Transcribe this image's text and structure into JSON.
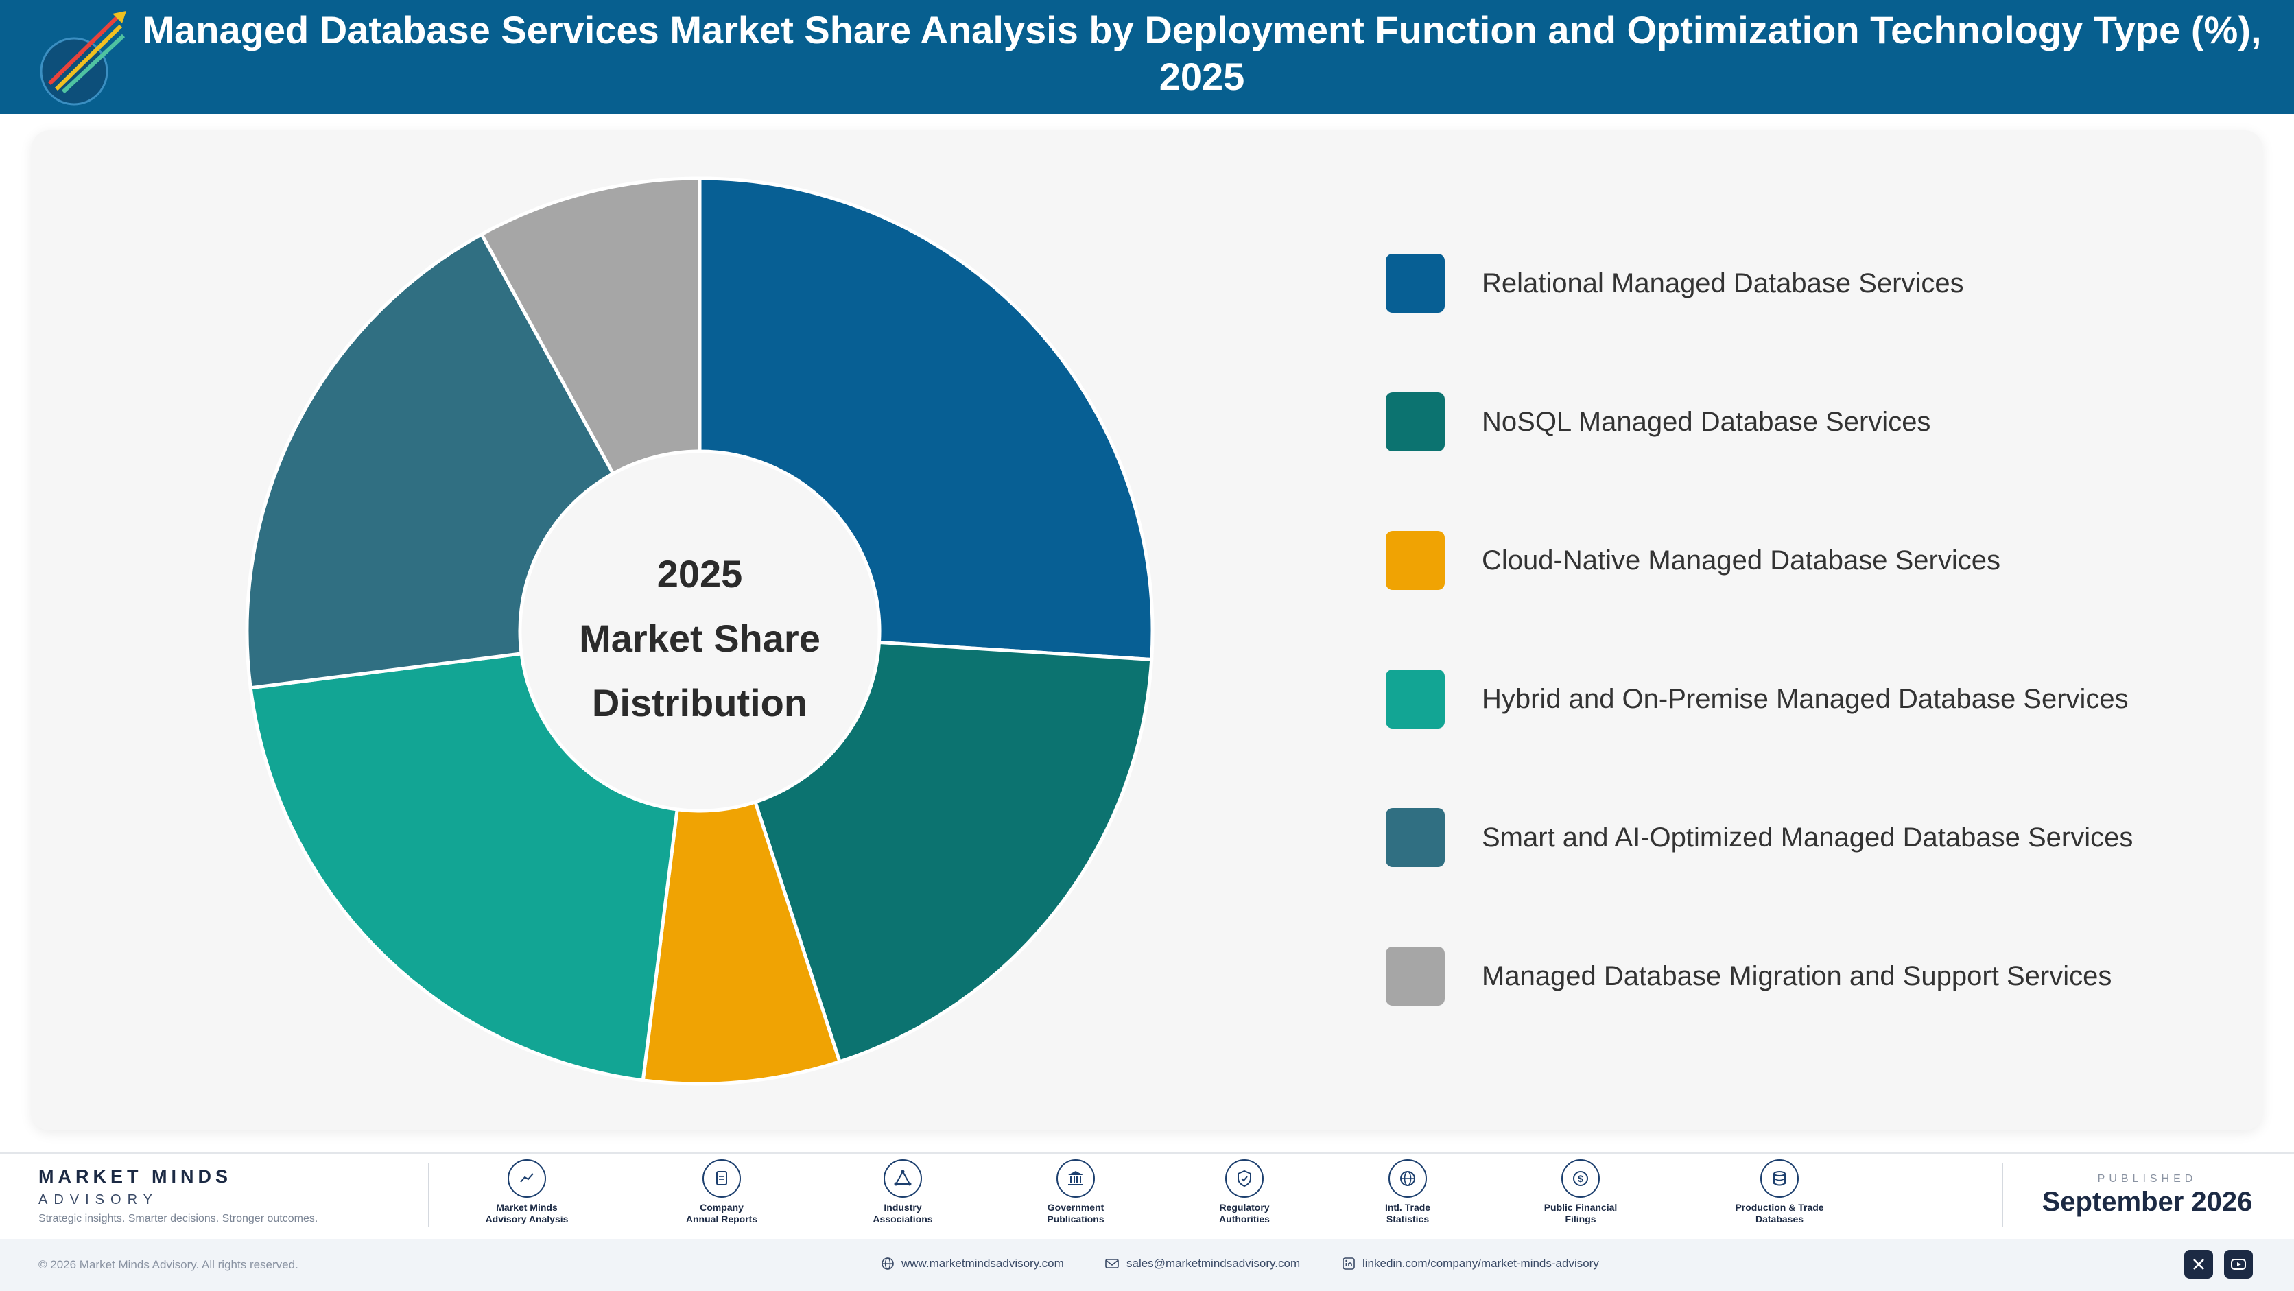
{
  "header": {
    "title": "Managed Database Services Market Share Analysis by Deployment Function and Optimization Technology Type (%), 2025"
  },
  "center_label": {
    "line1": "2025",
    "line2": "Market Share",
    "line3": "Distribution"
  },
  "chart_data": {
    "type": "pie",
    "style": "donut",
    "legend_position": "right",
    "categories": [
      "Relational Managed Database Services",
      "NoSQL Managed Database Services",
      "Cloud-Native Managed Database Services",
      "Hybrid and On-Premise Managed Database Services",
      "Smart and AI-Optimized Managed Database Services",
      "Managed Database Migration and Support Services"
    ],
    "values": [
      26.0,
      19.0,
      7.0,
      21.0,
      19.0,
      8.0
    ],
    "colors": [
      "#075f94",
      "#0c7370",
      "#f0a303",
      "#12a594",
      "#306f82",
      "#a6a6a6"
    ],
    "start_angle_deg": 0,
    "direction": "clockwise"
  },
  "footer": {
    "brand_name": "MARKET MINDS",
    "brand_sub": "ADVISORY",
    "brand_tagline": "Strategic insights. Smarter decisions. Stronger outcomes.",
    "sources": [
      {
        "line1": "Market Minds",
        "line2": "Advisory Analysis",
        "icon": "chart-line-icon"
      },
      {
        "line1": "Company",
        "line2": "Annual Reports",
        "icon": "document-icon"
      },
      {
        "line1": "Industry",
        "line2": "Associations",
        "icon": "network-icon"
      },
      {
        "line1": "Government",
        "line2": "Publications",
        "icon": "government-building-icon"
      },
      {
        "line1": "Regulatory",
        "line2": "Authorities",
        "icon": "shield-check-icon"
      },
      {
        "line1": "Intl. Trade",
        "line2": "Statistics",
        "icon": "globe-icon"
      },
      {
        "line1": "Public Financial",
        "line2": "Filings",
        "icon": "dollar-coin-icon"
      },
      {
        "line1": "Production & Trade",
        "line2": "Databases",
        "icon": "database-icon"
      }
    ],
    "published_label": "PUBLISHED",
    "published_date": "September 2026",
    "copyright": "© 2026 Market Minds Advisory. All rights reserved.",
    "website": "www.marketmindsadvisory.com",
    "email": "sales@marketmindsadvisory.com",
    "linkedin": "linkedin.com/company/market-minds-advisory",
    "social_icons": [
      "x-icon",
      "youtube-icon"
    ]
  }
}
